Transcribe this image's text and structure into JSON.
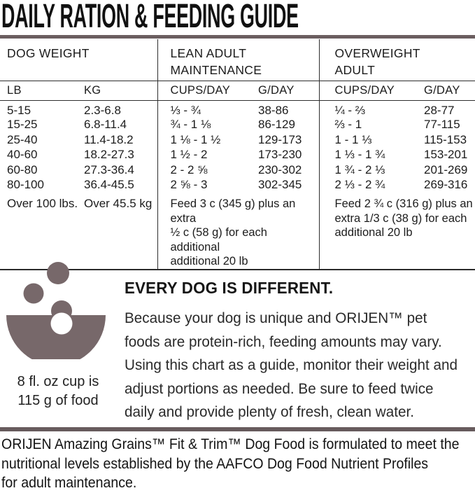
{
  "title": "DAILY RATION & FEEDING GUIDE",
  "colors": {
    "accent_bar_top": "#6b5e60",
    "accent_bar_bottom": "#675b5d",
    "illustration": "#77686a",
    "table_border": "#2e2e2e",
    "text": "#1d1d1d",
    "background": "#ffffff"
  },
  "table": {
    "groups": [
      {
        "label": "DOG WEIGHT"
      },
      {
        "label": "LEAN ADULT MAINTENANCE"
      },
      {
        "label": "OVERWEIGHT ADULT"
      }
    ],
    "columns": [
      "LB",
      "KG",
      "CUPS/DAY",
      "G/DAY",
      "CUPS/DAY",
      "G/DAY"
    ],
    "rows": [
      [
        "5-15",
        "2.3-6.8",
        "⅓ - ¾",
        "38-86",
        "¼ - ⅔",
        "28-77"
      ],
      [
        "15-25",
        "6.8-11.4",
        "¾ - 1 ⅛",
        "86-129",
        "⅔ - 1",
        "77-115"
      ],
      [
        "25-40",
        "11.4-18.2",
        "1 ⅛ - 1 ½",
        "129-173",
        "1 - 1 ⅓",
        "115-153"
      ],
      [
        "40-60",
        "18.2-27.3",
        "1 ½ - 2",
        "173-230",
        "1 ⅓ - 1 ¾",
        "153-201"
      ],
      [
        "60-80",
        "27.3-36.4",
        "2 - 2 ⅝",
        "230-302",
        "1 ¾ - 2 ⅓",
        "201-269"
      ],
      [
        "80-100",
        "36.4-45.5",
        "2 ⅝ - 3",
        "302-345",
        "2 ⅓ - 2 ¾",
        "269-316"
      ]
    ],
    "last_row": {
      "lb": "Over 100 lbs.",
      "kg": "Over 45.5 kg",
      "lean_note_lines": [
        "Feed 3 c (345 g) plus an extra",
        "½ c (58 g) for each additional",
        "additional 20 lb"
      ],
      "overweight_note_lines": [
        "Feed 2 ¾ c (316 g) plus an",
        "extra 1/3 c (38 g) for each",
        "additional 20 lb"
      ]
    }
  },
  "illustration": {
    "name": "bowl-with-kibble",
    "caption_lines": [
      "8 fl. oz cup is",
      "115 g of food"
    ]
  },
  "info": {
    "heading": "EVERY DOG IS DIFFERENT.",
    "body": "Because your dog is unique and ORIJEN™ pet foods are protein-rich, feeding amounts may vary. Using this chart as a guide, monitor their weight and adjust portions as needed. Be sure to feed twice daily and provide plenty of fresh, clean water."
  },
  "footer": {
    "lines": [
      "ORIJEN Amazing Grains™ Fit & Trim™ Dog Food is formulated to meet the",
      "nutritional levels established by the AAFCO Dog Food Nutrient Profiles",
      "for adult maintenance."
    ]
  }
}
